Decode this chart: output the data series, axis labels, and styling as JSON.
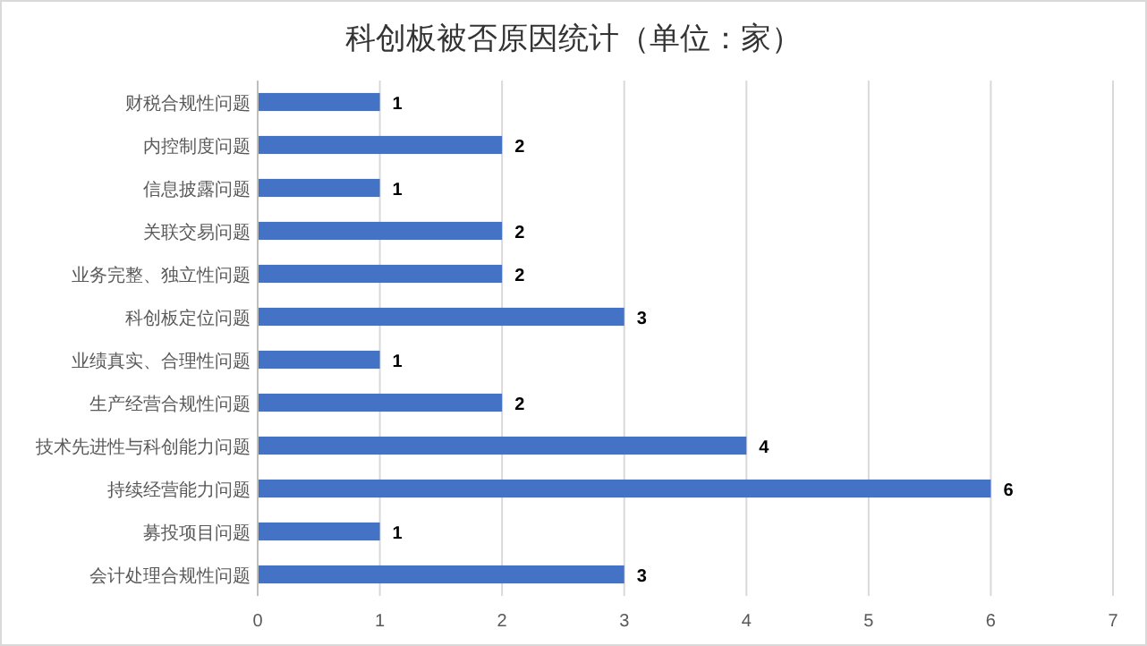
{
  "chart_data": {
    "type": "bar",
    "orientation": "horizontal",
    "title": "科创板被否原因统计（单位：家）",
    "categories": [
      "财税合规性问题",
      "内控制度问题",
      "信息披露问题",
      "关联交易问题",
      "业务完整、独立性问题",
      "科创板定位问题",
      "业绩真实、合理性问题",
      "生产经营合规性问题",
      "技术先进性与科创能力问题",
      "持续经营能力问题",
      "募投项目问题",
      "会计处理合规性问题"
    ],
    "values": [
      1,
      2,
      1,
      2,
      2,
      3,
      1,
      2,
      4,
      6,
      1,
      3
    ],
    "color": "#4472c4",
    "xlim": [
      0,
      7
    ],
    "xticks": [
      0,
      1,
      2,
      3,
      4,
      5,
      6,
      7
    ],
    "grid": "x",
    "data_labels": true
  }
}
